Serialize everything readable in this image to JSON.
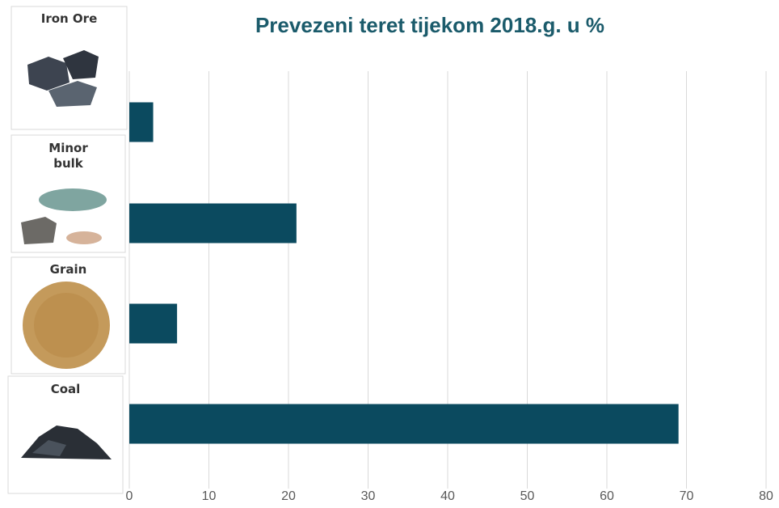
{
  "chart_data": {
    "type": "barh",
    "title": "Prevezeni teret tijekom 2018.g. u %",
    "categories": [
      "Iron Ore",
      "Minor bulk",
      "Grain",
      "Coal"
    ],
    "values": [
      3,
      21,
      6,
      69
    ],
    "color": "#0b4a5f",
    "xlim": [
      0,
      80
    ],
    "xticks": [
      0,
      10,
      20,
      30,
      40,
      50,
      60,
      70,
      80
    ],
    "grid": true
  }
}
